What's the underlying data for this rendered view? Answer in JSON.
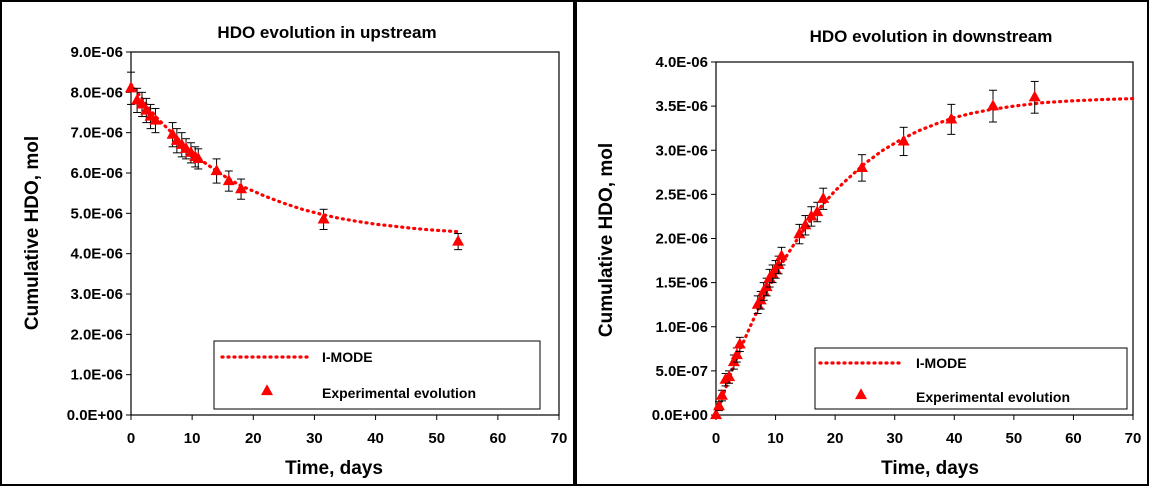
{
  "chart_data": [
    {
      "type": "scatter",
      "title": "HDO evolution in upstream",
      "xlabel": "Time, days",
      "ylabel": "Cumulative HDO, mol",
      "xlim": [
        0,
        70
      ],
      "ylim": [
        0,
        9e-06
      ],
      "x_ticks": [
        0,
        10,
        20,
        30,
        40,
        50,
        60,
        70
      ],
      "y_ticks": [
        0,
        1e-06,
        2e-06,
        3e-06,
        4e-06,
        5e-06,
        6e-06,
        7e-06,
        8e-06,
        9e-06
      ],
      "x_tick_labels": [
        "0",
        "10",
        "20",
        "30",
        "40",
        "50",
        "60",
        "70"
      ],
      "y_tick_labels": [
        "0.0E+00",
        "1.0E-06",
        "2.0E-06",
        "3.0E-06",
        "4.0E-06",
        "5.0E-06",
        "6.0E-06",
        "7.0E-06",
        "8.0E-06",
        "9.0E-06"
      ],
      "grid": false,
      "legend_position": "bottom-right",
      "colors": {
        "series": "#ff0000"
      },
      "series": [
        {
          "name": "I-MODE",
          "style": "dotted-line",
          "x": [
            0,
            1,
            2,
            3,
            4,
            5,
            6,
            7,
            8,
            9,
            10,
            11,
            12,
            14,
            16,
            18,
            20,
            22,
            25,
            28,
            31,
            34,
            37,
            40,
            43,
            46,
            49,
            52,
            54
          ],
          "y": [
            8.2e-06,
            8e-06,
            7.8e-06,
            7.6e-06,
            7.4e-06,
            7.25e-06,
            7.1e-06,
            6.95e-06,
            6.8e-06,
            6.65e-06,
            6.5e-06,
            6.38e-06,
            6.26e-06,
            6.05e-06,
            5.85e-06,
            5.68e-06,
            5.55e-06,
            5.42e-06,
            5.25e-06,
            5.1e-06,
            4.98e-06,
            4.88e-06,
            4.8e-06,
            4.73e-06,
            4.68e-06,
            4.63e-06,
            4.59e-06,
            4.56e-06,
            4.54e-06
          ]
        },
        {
          "name": "Experimental evolution",
          "style": "triangle",
          "x": [
            0,
            1,
            1.8,
            2.5,
            3.2,
            4,
            6.8,
            7.5,
            8.3,
            9,
            9.8,
            10.5,
            11,
            14,
            16,
            18,
            31.5,
            53.5
          ],
          "y": [
            8.1e-06,
            7.8e-06,
            7.7e-06,
            7.55e-06,
            7.4e-06,
            7.3e-06,
            6.95e-06,
            6.8e-06,
            6.7e-06,
            6.6e-06,
            6.5e-06,
            6.4e-06,
            6.35e-06,
            6.05e-06,
            5.8e-06,
            5.6e-06,
            4.85e-06,
            4.3e-06
          ],
          "error": [
            4e-07,
            3e-07,
            3e-07,
            3e-07,
            3e-07,
            3e-07,
            3e-07,
            3e-07,
            3e-07,
            2.5e-07,
            2.5e-07,
            2.5e-07,
            2.5e-07,
            3e-07,
            2.5e-07,
            2.5e-07,
            2.5e-07,
            2e-07
          ]
        }
      ]
    },
    {
      "type": "scatter",
      "title": "HDO evolution in downstream",
      "xlabel": "Time, days",
      "ylabel": "Cumulative HDO, mol",
      "xlim": [
        0,
        70
      ],
      "ylim": [
        0,
        4e-06
      ],
      "x_ticks": [
        0,
        10,
        20,
        30,
        40,
        50,
        60,
        70
      ],
      "y_ticks": [
        0,
        5e-07,
        1e-06,
        1.5e-06,
        2e-06,
        2.5e-06,
        3e-06,
        3.5e-06,
        4e-06
      ],
      "x_tick_labels": [
        "0",
        "10",
        "20",
        "30",
        "40",
        "50",
        "60",
        "70"
      ],
      "y_tick_labels": [
        "0.0E+00",
        "5.0E-07",
        "1.0E-06",
        "1.5E-06",
        "2.0E-06",
        "2.5E-06",
        "3.0E-06",
        "3.5E-06",
        "4.0E-06"
      ],
      "grid": false,
      "legend_position": "bottom-right",
      "colors": {
        "series": "#ff0000"
      },
      "series": [
        {
          "name": "I-MODE",
          "style": "dotted-line",
          "x": [
            0,
            1,
            2,
            3,
            4,
            5,
            6,
            7,
            8,
            9,
            10,
            11,
            12,
            14,
            16,
            18,
            20,
            22,
            25,
            28,
            31,
            34,
            37,
            40,
            43,
            46,
            50,
            55,
            60,
            65,
            70
          ],
          "y": [
            0,
            1.9e-07,
            3.8e-07,
            5.6e-07,
            7.3e-07,
            8.9e-07,
            1.04e-06,
            1.19e-06,
            1.33e-06,
            1.46e-06,
            1.59e-06,
            1.71e-06,
            1.82e-06,
            2.03e-06,
            2.22e-06,
            2.39e-06,
            2.54e-06,
            2.67e-06,
            2.85e-06,
            3e-06,
            3.12e-06,
            3.22e-06,
            3.3e-06,
            3.37e-06,
            3.42e-06,
            3.46e-06,
            3.5e-06,
            3.54e-06,
            3.56e-06,
            3.575e-06,
            3.585e-06
          ]
        },
        {
          "name": "Experimental evolution",
          "style": "triangle",
          "x": [
            0,
            0.5,
            1,
            1.6,
            2.2,
            3,
            3.5,
            4,
            7,
            7.5,
            8,
            8.5,
            9,
            9.5,
            10,
            10.5,
            11,
            14,
            15,
            16,
            17,
            18,
            24.5,
            31.5,
            39.5,
            46.5,
            53.5
          ],
          "y": [
            0,
            1e-07,
            2.2e-07,
            4e-07,
            4.3e-07,
            6e-07,
            6.8e-07,
            8e-07,
            1.25e-06,
            1.3e-06,
            1.4e-06,
            1.45e-06,
            1.55e-06,
            1.6e-06,
            1.65e-06,
            1.7e-06,
            1.8e-06,
            2.05e-06,
            2.15e-06,
            2.25e-06,
            2.3e-06,
            2.45e-06,
            2.8e-06,
            3.1e-06,
            3.35e-06,
            3.5e-06,
            3.6e-06
          ],
          "error": [
            0,
            5e-08,
            6e-08,
            7e-08,
            7e-08,
            8e-08,
            8e-08,
            8e-08,
            1e-07,
            1e-07,
            1e-07,
            1e-07,
            1e-07,
            1e-07,
            1e-07,
            1e-07,
            1e-07,
            1.1e-07,
            1.1e-07,
            1.1e-07,
            1.1e-07,
            1.2e-07,
            1.5e-07,
            1.6e-07,
            1.7e-07,
            1.8e-07,
            1.8e-07
          ]
        }
      ]
    }
  ]
}
